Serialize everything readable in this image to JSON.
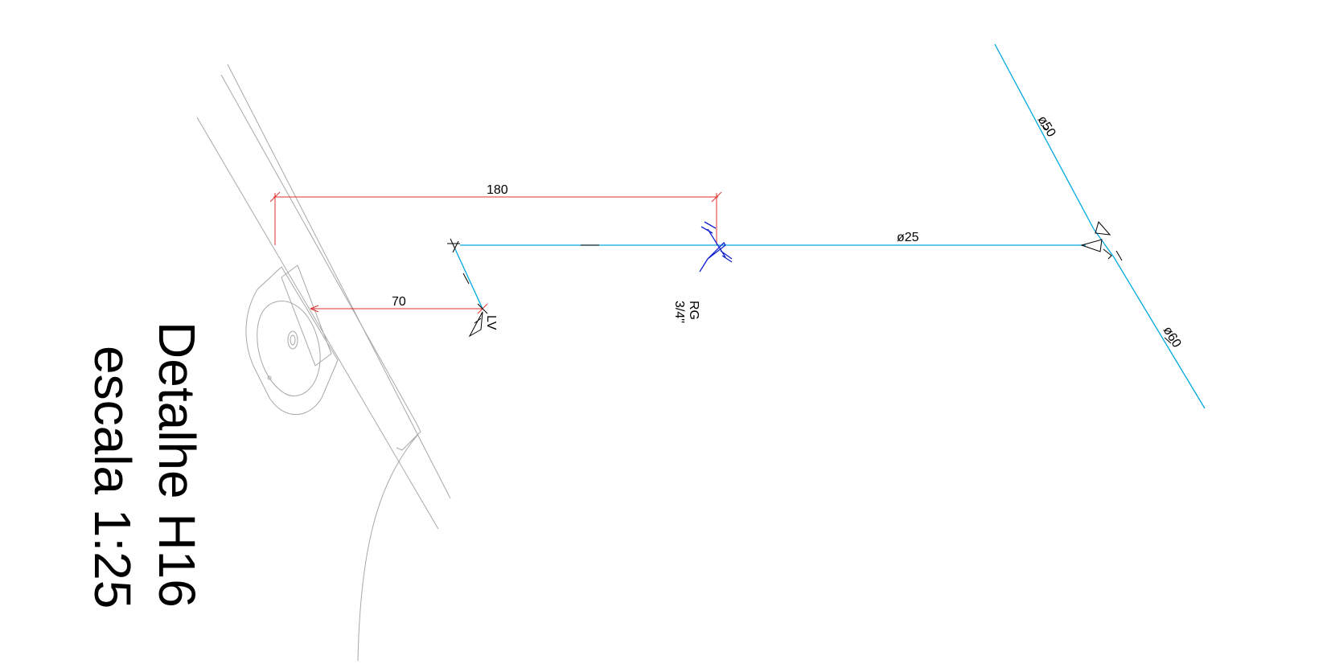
{
  "drawing": {
    "title": "Detalhe H16",
    "scale_label": "escala 1:25",
    "colors": {
      "pipe": "#00a9e0",
      "dimension": "#e03030",
      "valve": "#1020d0",
      "fixture": "#a0a0a0",
      "text": "#000000"
    },
    "dimensions": {
      "top": "180",
      "bottom": "70"
    },
    "pipe_labels": {
      "horizontal": "ø25",
      "upper_diagonal": "ø50",
      "lower_diagonal": "ø60"
    },
    "fixture_label": "LV",
    "valve_label": {
      "line1": "RG",
      "line2": "3/4\""
    }
  }
}
